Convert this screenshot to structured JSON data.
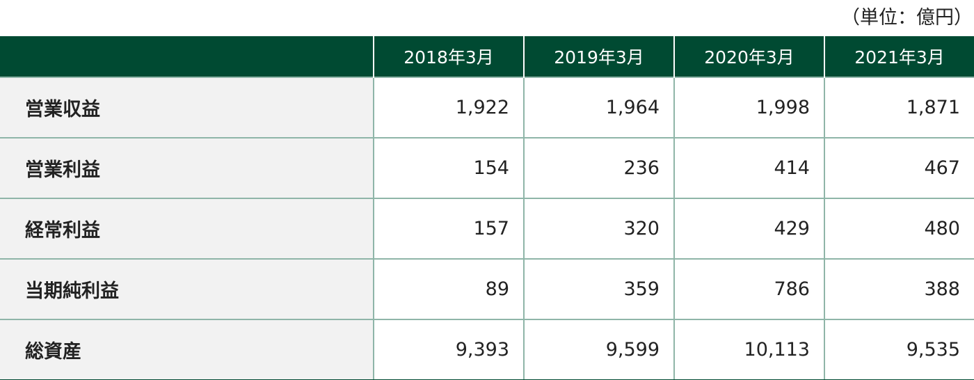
{
  "unit_note": "（単位：億円）",
  "columns": [
    "2018年3月",
    "2019年3月",
    "2020年3月",
    "2021年3月"
  ],
  "rows": [
    {
      "label": "営業収益",
      "values": [
        "1,922",
        "1,964",
        "1,998",
        "1,871"
      ]
    },
    {
      "label": "営業利益",
      "values": [
        "154",
        "236",
        "414",
        "467"
      ]
    },
    {
      "label": "経常利益",
      "values": [
        "157",
        "320",
        "429",
        "480"
      ]
    },
    {
      "label": "当期純利益",
      "values": [
        "89",
        "359",
        "786",
        "388"
      ]
    },
    {
      "label": "総資産",
      "values": [
        "9,393",
        "9,599",
        "10,113",
        "9,535"
      ]
    }
  ],
  "colors": {
    "header_bg": "#004a32",
    "label_bg": "#f2f2f2",
    "border": "#8fb5a8"
  }
}
